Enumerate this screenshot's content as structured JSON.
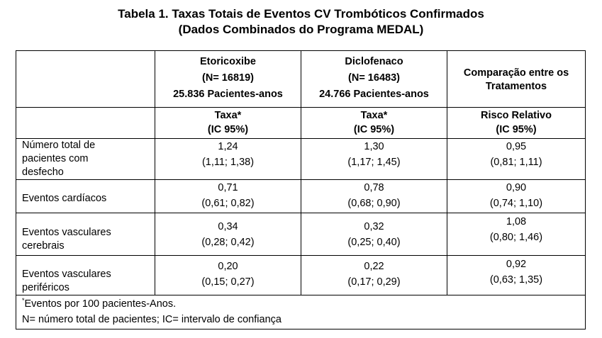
{
  "title": {
    "line1": "Tabela 1. Taxas Totais de Eventos CV Trombóticos Confirmados",
    "line2": "(Dados Combinados do Programa MEDAL)"
  },
  "header": {
    "etoricoxibe": {
      "name": "Etoricoxibe",
      "n": "(N= 16819)",
      "pacientes_anos": "25.836 Pacientes-anos"
    },
    "diclofenaco": {
      "name": "Diclofenaco",
      "n": "(N= 16483)",
      "pacientes_anos": "24.766 Pacientes-anos"
    },
    "comparacao": {
      "line1": "Comparação entre os",
      "line2": "Tratamentos"
    },
    "sub": {
      "taxa": "Taxa",
      "taxa_mark": "*",
      "ic": "(IC 95%)",
      "risco": "Risco Relativo"
    }
  },
  "rows": [
    {
      "label_lines": [
        "Número total de",
        "pacientes com",
        "desfecho"
      ],
      "etori": {
        "value": "1,24",
        "ci": "(1,11; 1,38)"
      },
      "diclo": {
        "value": "1,30",
        "ci": "(1,17; 1,45)"
      },
      "rr": {
        "value": "0,95",
        "ci": "(0,81; 1,11)"
      }
    },
    {
      "label_lines": [
        "Eventos cardíacos"
      ],
      "etori": {
        "value": "0,71",
        "ci": "(0,61; 0,82)"
      },
      "diclo": {
        "value": "0,78",
        "ci": "(0,68; 0,90)"
      },
      "rr": {
        "value": "0,90",
        "ci": "(0,74; 1,10)"
      }
    },
    {
      "label_lines": [
        "Eventos vasculares",
        "cerebrais"
      ],
      "etori": {
        "value": "0,34",
        "ci": "(0,28; 0,42)"
      },
      "diclo": {
        "value": "0,32",
        "ci": "(0,25; 0,40)"
      },
      "rr": {
        "value": "1,08",
        "ci": "(0,80; 1,46)"
      }
    },
    {
      "label_lines": [
        "Eventos vasculares",
        "periféricos"
      ],
      "etori": {
        "value": "0,20",
        "ci": "(0,15; 0,27)"
      },
      "diclo": {
        "value": "0,22",
        "ci": "(0,17; 0,29)"
      },
      "rr": {
        "value": "0,92",
        "ci": "(0,63; 1,35)"
      }
    }
  ],
  "footnotes": {
    "mark": "*",
    "line1": "Eventos por 100 pacientes-Anos.",
    "line2": "N= número total de pacientes; IC= intervalo de confiança"
  }
}
